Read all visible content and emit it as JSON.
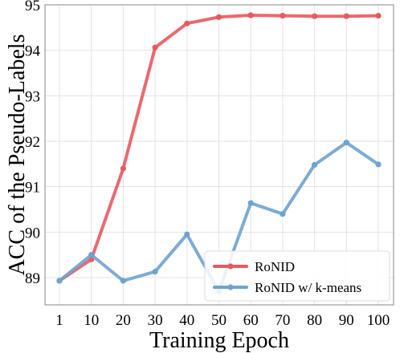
{
  "chart_data": {
    "type": "line",
    "title": "",
    "xlabel": "Training Epoch",
    "ylabel": "ACC of the Pseudo-Labels",
    "categories": [
      "1",
      "10",
      "20",
      "30",
      "40",
      "50",
      "60",
      "70",
      "80",
      "90",
      "100"
    ],
    "ylim": [
      88.4,
      95.0
    ],
    "yticks": [
      89,
      90,
      91,
      92,
      93,
      94,
      95
    ],
    "grid": true,
    "legend_position": "bottom-right",
    "series": [
      {
        "name": "RoNID",
        "color": "#e8595f",
        "values": [
          88.93,
          89.4,
          91.4,
          94.06,
          94.59,
          94.73,
          94.77,
          94.76,
          94.75,
          94.75,
          94.76
        ]
      },
      {
        "name": "RoNID w/ k-means",
        "color": "#6ea3d0",
        "values": [
          88.93,
          89.5,
          88.93,
          89.13,
          89.95,
          88.7,
          90.64,
          90.4,
          91.48,
          91.97,
          91.49
        ]
      }
    ]
  }
}
